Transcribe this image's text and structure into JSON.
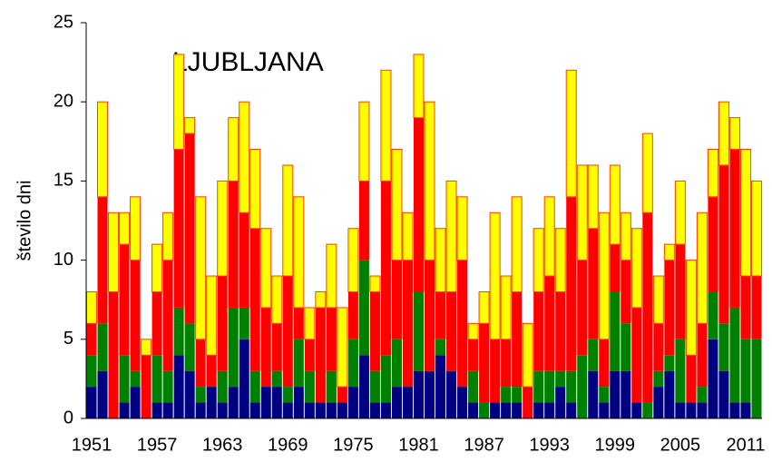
{
  "chart_data": {
    "type": "stacked_bar",
    "title": "LJUBLJANA",
    "ylabel": "število dni",
    "categories": [
      1951,
      null,
      null,
      null,
      null,
      null,
      1957,
      null,
      null,
      null,
      null,
      null,
      1963,
      null,
      null,
      null,
      null,
      null,
      1969,
      null,
      null,
      null,
      null,
      null,
      1975,
      null,
      null,
      null,
      null,
      null,
      1981,
      null,
      null,
      null,
      null,
      null,
      1987,
      null,
      null,
      null,
      null,
      null,
      1993,
      null,
      null,
      null,
      null,
      null,
      1999,
      null,
      null,
      null,
      null,
      null,
      2005,
      null,
      null,
      null,
      null,
      null,
      2011,
      null
    ],
    "series": [
      {
        "color": "#000080",
        "values": [
          2,
          3,
          0,
          1,
          2,
          0,
          1,
          1,
          4,
          3,
          1,
          2,
          1,
          2,
          5,
          1,
          2,
          2,
          1,
          2,
          1,
          1,
          1,
          1,
          2,
          4,
          1,
          1,
          2,
          2,
          3,
          3,
          4,
          3,
          2,
          1,
          0,
          1,
          1,
          1,
          0,
          1,
          1,
          2,
          1,
          0,
          3,
          1,
          3,
          3,
          1,
          0,
          2,
          3,
          1,
          1,
          1,
          5,
          3,
          1,
          1,
          0
        ]
      },
      {
        "color": "#008000",
        "values": [
          2,
          3,
          0,
          3,
          1,
          0,
          3,
          2,
          3,
          3,
          1,
          0,
          2,
          5,
          2,
          2,
          0,
          1,
          1,
          3,
          2,
          0,
          2,
          0,
          3,
          6,
          2,
          3,
          3,
          0,
          5,
          0,
          1,
          0,
          0,
          2,
          1,
          0,
          1,
          1,
          0,
          2,
          2,
          1,
          2,
          4,
          2,
          1,
          5,
          3,
          0,
          1,
          1,
          1,
          4,
          0,
          1,
          3,
          3,
          6,
          4,
          5
        ]
      },
      {
        "color": "#ff0000",
        "values": [
          2,
          8,
          8,
          7,
          7,
          4,
          4,
          7,
          10,
          12,
          3,
          2,
          6,
          8,
          6,
          9,
          5,
          3,
          7,
          2,
          2,
          6,
          4,
          1,
          3,
          5,
          5,
          11,
          5,
          8,
          11,
          7,
          3,
          5,
          8,
          2,
          5,
          4,
          3,
          6,
          2,
          5,
          6,
          5,
          11,
          6,
          7,
          3,
          3,
          4,
          6,
          12,
          3,
          6,
          6,
          3,
          4,
          6,
          10,
          10,
          4,
          4
        ]
      },
      {
        "color": "#ffff00",
        "edgecolor": "#ff4000",
        "values": [
          2,
          6,
          5,
          2,
          4,
          1,
          3,
          3,
          6,
          1,
          9,
          5,
          6,
          4,
          7,
          5,
          5,
          3,
          7,
          7,
          2,
          1,
          4,
          5,
          4,
          5,
          1,
          7,
          7,
          3,
          4,
          10,
          4,
          7,
          4,
          1,
          2,
          8,
          4,
          6,
          4,
          4,
          5,
          4,
          8,
          6,
          4,
          8,
          5,
          3,
          5,
          5,
          3,
          1,
          4,
          6,
          7,
          3,
          4,
          2,
          8,
          6
        ]
      }
    ],
    "ylim": [
      0,
      25
    ],
    "yticks": [
      0,
      5,
      10,
      15,
      20,
      25
    ]
  }
}
